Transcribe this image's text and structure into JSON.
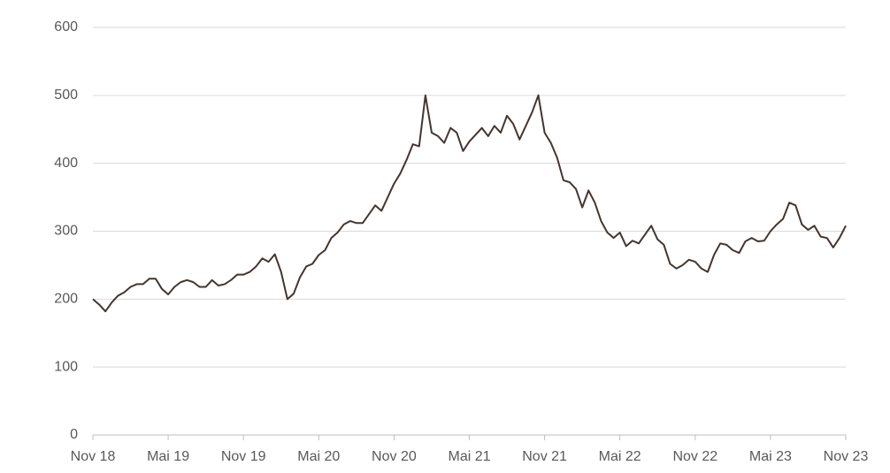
{
  "chart_data": {
    "type": "line",
    "categories": [
      "Nov 18",
      null,
      null,
      null,
      null,
      null,
      null,
      null,
      null,
      null,
      null,
      null,
      "Mai 19",
      null,
      null,
      null,
      null,
      null,
      null,
      null,
      null,
      null,
      null,
      null,
      "Nov 19",
      null,
      null,
      null,
      null,
      null,
      null,
      null,
      null,
      null,
      null,
      null,
      "Mai 20",
      null,
      null,
      null,
      null,
      null,
      null,
      null,
      null,
      null,
      null,
      null,
      "Nov 20",
      null,
      null,
      null,
      null,
      null,
      null,
      null,
      null,
      null,
      null,
      null,
      "Mai 21",
      null,
      null,
      null,
      null,
      null,
      null,
      null,
      null,
      null,
      null,
      null,
      "Nov 21",
      null,
      null,
      null,
      null,
      null,
      null,
      null,
      null,
      null,
      null,
      null,
      "Mai 22",
      null,
      null,
      null,
      null,
      null,
      null,
      null,
      null,
      null,
      null,
      null,
      "Nov 22",
      null,
      null,
      null,
      null,
      null,
      null,
      null,
      null,
      null,
      null,
      null,
      "Mai 23",
      null,
      null,
      null,
      null,
      null,
      null,
      null,
      null,
      null,
      null,
      null,
      "Nov 23"
    ],
    "values": [
      200,
      192,
      182,
      195,
      205,
      210,
      218,
      222,
      222,
      230,
      230,
      215,
      207,
      218,
      225,
      228,
      225,
      218,
      218,
      228,
      220,
      222,
      228,
      236,
      236,
      240,
      248,
      260,
      255,
      266,
      240,
      200,
      208,
      232,
      248,
      252,
      265,
      272,
      290,
      298,
      310,
      315,
      312,
      312,
      325,
      338,
      330,
      350,
      370,
      385,
      405,
      428,
      425,
      500,
      445,
      440,
      430,
      452,
      445,
      418,
      432,
      442,
      452,
      440,
      455,
      445,
      470,
      458,
      435,
      455,
      475,
      500,
      445,
      430,
      408,
      375,
      372,
      362,
      335,
      360,
      342,
      315,
      298,
      290,
      298,
      278,
      286,
      282,
      295,
      308,
      288,
      280,
      252,
      245,
      250,
      258,
      255,
      245,
      240,
      265,
      282,
      280,
      272,
      268,
      285,
      290,
      285,
      286,
      300,
      310,
      318,
      342,
      338,
      310,
      302,
      308,
      292,
      290,
      276,
      290,
      308
    ],
    "color": "#43362f",
    "ylim": [
      0,
      600
    ],
    "yticks": [
      0,
      100,
      200,
      300,
      400,
      500,
      600
    ],
    "grid": true
  }
}
